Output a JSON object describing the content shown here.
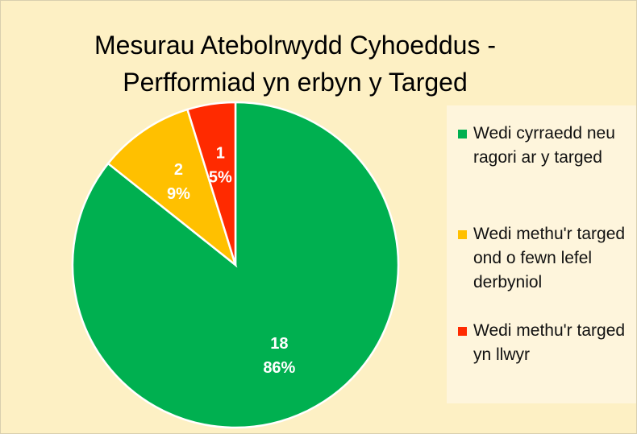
{
  "chart_data": {
    "type": "pie",
    "title": "Mesurau Atebolrwydd Cyhoeddus - Perfformiad yn erbyn y Targed",
    "categories": [
      "Wedi cyrraedd neu ragori ar y targed",
      "Wedi methu'r targed ond o fewn lefel derbyniol",
      "Wedi methu'r targed yn llwyr"
    ],
    "values": [
      18,
      2,
      1
    ],
    "percentages": [
      86,
      9,
      5
    ],
    "percentage_labels": [
      "86%",
      "9%",
      "5%"
    ],
    "colors": [
      "#00b050",
      "#ffc000",
      "#ff2a00"
    ],
    "legend": "right"
  }
}
